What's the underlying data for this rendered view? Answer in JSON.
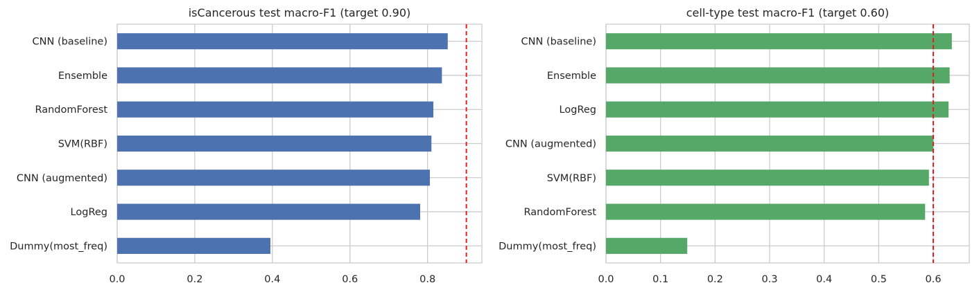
{
  "chart_data": [
    {
      "type": "bar",
      "orientation": "horizontal",
      "title": "isCancerous test macro-F1 (target 0.90)",
      "xlabel": "",
      "ylabel": "",
      "categories": [
        "CNN (baseline)",
        "Ensemble",
        "RandomForest",
        "SVM(RBF)",
        "CNN (augmented)",
        "LogReg",
        "Dummy(most_freq)"
      ],
      "values": [
        0.852,
        0.837,
        0.815,
        0.81,
        0.806,
        0.781,
        0.395
      ],
      "xlim": [
        0,
        0.94
      ],
      "xticks": [
        0.0,
        0.2,
        0.4,
        0.6,
        0.8
      ],
      "xtick_labels": [
        "0.0",
        "0.2",
        "0.4",
        "0.6",
        "0.8"
      ],
      "target": 0.9,
      "bar_color": "#4c72b0",
      "target_color": "#e41a1c",
      "grid": true
    },
    {
      "type": "bar",
      "orientation": "horizontal",
      "title": "cell-type test macro-F1 (target 0.60)",
      "xlabel": "",
      "ylabel": "",
      "categories": [
        "CNN (baseline)",
        "Ensemble",
        "LogReg",
        "CNN (augmented)",
        "SVM(RBF)",
        "RandomForest",
        "Dummy(most_freq)"
      ],
      "values": [
        0.634,
        0.63,
        0.628,
        0.6,
        0.592,
        0.585,
        0.149
      ],
      "xlim": [
        0,
        0.666
      ],
      "xticks": [
        0.0,
        0.1,
        0.2,
        0.3,
        0.4,
        0.5,
        0.6
      ],
      "xtick_labels": [
        "0.0",
        "0.1",
        "0.2",
        "0.3",
        "0.4",
        "0.5",
        "0.6"
      ],
      "target": 0.6,
      "bar_color": "#55a868",
      "target_color": "#e41a1c",
      "grid": true
    }
  ]
}
